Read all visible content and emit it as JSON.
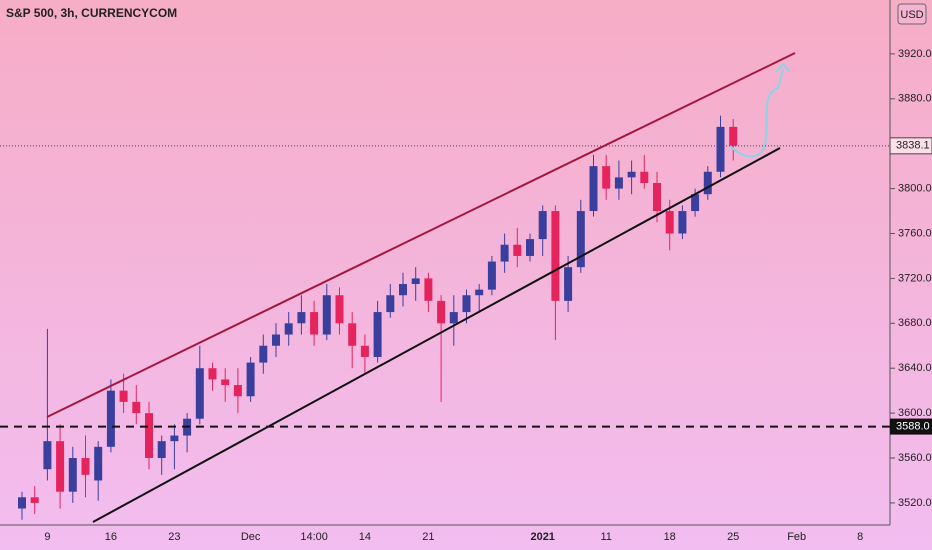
{
  "chart_data": {
    "type": "candlestick",
    "title": "S&P 500, 3h, CURRENCYCOM",
    "currency": "USD",
    "categories": [
      null,
      null,
      "9",
      null,
      null,
      null,
      null,
      "16",
      null,
      null,
      null,
      null,
      "23",
      null,
      null,
      null,
      null,
      null,
      "Dec",
      null,
      null,
      null,
      null,
      "14:00",
      null,
      null,
      null,
      "14",
      null,
      null,
      null,
      null,
      "21",
      null,
      null,
      null,
      null,
      null,
      null,
      null,
      null,
      "2021",
      null,
      null,
      null,
      null,
      "11",
      null,
      null,
      null,
      null,
      "18",
      null,
      null,
      null,
      null,
      "25",
      null,
      null,
      null,
      null,
      "Feb",
      null,
      null,
      null,
      null,
      "8",
      null
    ],
    "open": [
      3515,
      3525,
      3550,
      3575,
      3530,
      3560,
      3540,
      3570,
      3620,
      3610,
      3600,
      3560,
      3575,
      3580,
      3595,
      3640,
      3630,
      3625,
      3615,
      3645,
      3660,
      3670,
      3680,
      3690,
      3670,
      3705,
      3680,
      3660,
      3650,
      3690,
      3705,
      3715,
      3720,
      3700,
      3680,
      3690,
      3705,
      3710,
      3735,
      3750,
      3740,
      3755,
      3780,
      3700,
      3730,
      3780,
      3820,
      3800,
      3810,
      3815,
      3805,
      3780,
      3760,
      3780,
      3795,
      3815,
      3855,
      null,
      null,
      null,
      null,
      null,
      null,
      null,
      null,
      null,
      null,
      null
    ],
    "high": [
      3530,
      3535,
      3675,
      3590,
      3570,
      3580,
      3575,
      3630,
      3635,
      3625,
      3610,
      3580,
      3590,
      3600,
      3660,
      3645,
      3640,
      3640,
      3650,
      3670,
      3680,
      3690,
      3705,
      3700,
      3715,
      3712,
      3690,
      3670,
      3700,
      3715,
      3725,
      3730,
      3725,
      3705,
      3705,
      3710,
      3715,
      3740,
      3760,
      3765,
      3760,
      3785,
      3785,
      3740,
      3790,
      3830,
      3830,
      3825,
      3825,
      3830,
      3815,
      3790,
      3785,
      3800,
      3820,
      3865,
      3862,
      null,
      null,
      null,
      null,
      null,
      null,
      null,
      null,
      null,
      null,
      null
    ],
    "low": [
      3505,
      3510,
      3540,
      3515,
      3520,
      3525,
      3522,
      3565,
      3600,
      3590,
      3550,
      3545,
      3550,
      3565,
      3590,
      3620,
      3610,
      3600,
      3610,
      3635,
      3650,
      3660,
      3670,
      3660,
      3665,
      3670,
      3640,
      3635,
      3645,
      3685,
      3695,
      3700,
      3690,
      3610,
      3660,
      3680,
      3690,
      3705,
      3725,
      3730,
      3735,
      3740,
      3665,
      3690,
      3725,
      3775,
      3790,
      3790,
      3795,
      3800,
      3770,
      3745,
      3755,
      3775,
      3790,
      3810,
      3825,
      null,
      null,
      null,
      null,
      null,
      null,
      null,
      null,
      null,
      null,
      null
    ],
    "close": [
      3525,
      3520,
      3575,
      3530,
      3560,
      3545,
      3570,
      3620,
      3610,
      3600,
      3560,
      3575,
      3580,
      3595,
      3640,
      3630,
      3625,
      3615,
      3645,
      3660,
      3670,
      3680,
      3690,
      3670,
      3705,
      3680,
      3660,
      3650,
      3690,
      3705,
      3715,
      3720,
      3700,
      3680,
      3690,
      3705,
      3710,
      3735,
      3750,
      3740,
      3755,
      3780,
      3700,
      3730,
      3780,
      3820,
      3800,
      3810,
      3815,
      3805,
      3780,
      3760,
      3780,
      3795,
      3815,
      3855,
      3838.1,
      null,
      null,
      null,
      null,
      null,
      null,
      null,
      null,
      null,
      null,
      null
    ],
    "up_color": "#3a3f9e",
    "down_color": "#e5245e",
    "ylim": [
      3503,
      3968
    ],
    "yticks": [
      {
        "value": 3520,
        "label": "3520.0"
      },
      {
        "value": 3560,
        "label": "3560.0"
      },
      {
        "value": 3600,
        "label": "3600.0"
      },
      {
        "value": 3640,
        "label": "3640.0"
      },
      {
        "value": 3680,
        "label": "3680.0"
      },
      {
        "value": 3720,
        "label": "3720.0"
      },
      {
        "value": 3760,
        "label": "3760.0"
      },
      {
        "value": 3800,
        "label": "3800.0"
      },
      {
        "value": 3840,
        "label": "3840.0"
      },
      {
        "value": 3880,
        "label": "3880.0"
      },
      {
        "value": 3920,
        "label": "3920.0"
      }
    ],
    "level": {
      "value": 3588,
      "label": "3588.0"
    },
    "last_price": 3838.1
  }
}
